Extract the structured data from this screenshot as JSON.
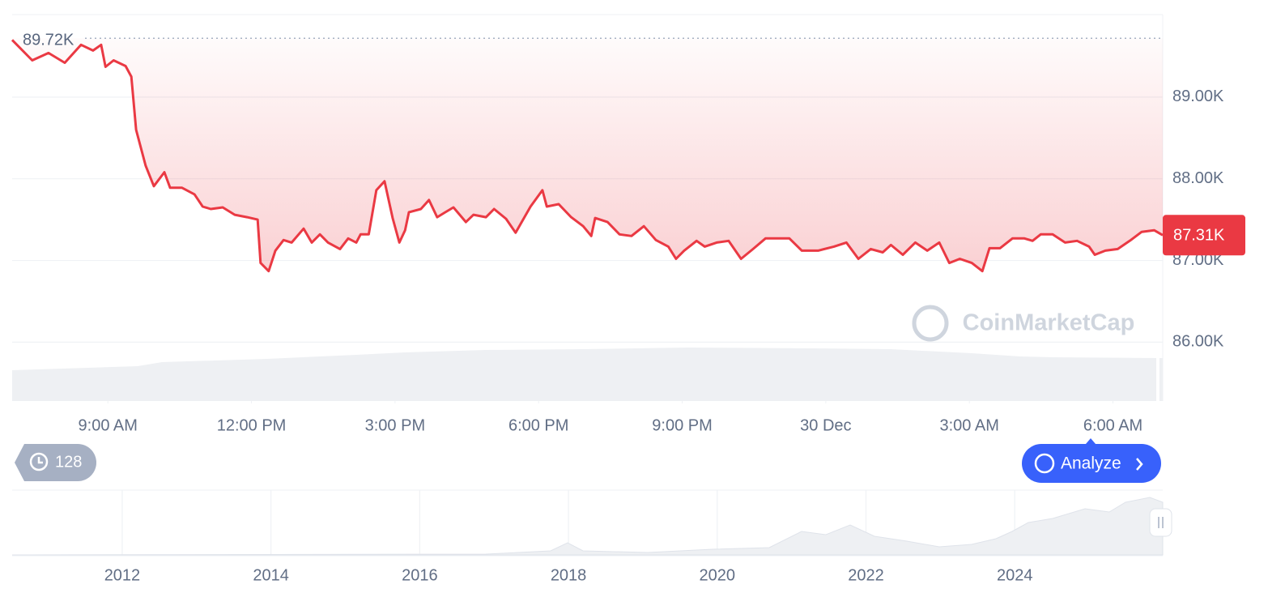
{
  "chart_data": {
    "type": "line",
    "color": "#ea3943",
    "x": [
      0,
      0.42,
      0.76,
      1.1,
      1.44,
      1.69,
      1.86,
      1.95,
      2.12,
      2.37,
      2.49,
      2.59,
      2.79,
      2.96,
      3.18,
      3.3,
      3.55,
      3.81,
      3.98,
      4.15,
      4.4,
      4.65,
      4.91,
      5.13,
      5.19,
      5.36,
      5.5,
      5.67,
      5.84,
      6.09,
      6.26,
      6.43,
      6.6,
      6.85,
      7.02,
      7.19,
      7.28,
      7.45,
      7.61,
      7.78,
      7.95,
      8.09,
      8.21,
      8.29,
      8.54,
      8.71,
      8.88,
      9.05,
      9.22,
      9.48,
      9.64,
      9.9,
      10.07,
      10.32,
      10.52,
      10.83,
      11.08,
      11.17,
      11.42,
      11.68,
      11.93,
      12.1,
      12.18,
      12.44,
      12.69,
      12.94,
      13.2,
      13.45,
      13.71,
      13.87,
      14.04,
      14.3,
      14.47,
      14.72,
      14.97,
      15.23,
      15.48,
      15.74,
      15.99,
      16.24,
      16.5,
      16.84,
      17.17,
      17.43,
      17.68,
      17.94,
      18.19,
      18.36,
      18.61,
      18.87,
      19.12,
      19.37,
      19.58,
      19.8,
      20.05,
      20.27,
      20.42,
      20.64,
      20.9,
      21.15,
      21.32,
      21.49,
      21.74,
      22.0,
      22.25,
      22.5,
      22.62,
      22.84,
      23.1,
      23.35,
      23.6,
      23.86,
      24.04
    ],
    "values": [
      89700,
      89450,
      89540,
      89420,
      89640,
      89570,
      89640,
      89370,
      89450,
      89380,
      89250,
      88600,
      88160,
      87910,
      88080,
      87890,
      87890,
      87810,
      87660,
      87630,
      87650,
      87560,
      87530,
      87500,
      86970,
      86870,
      87120,
      87250,
      87220,
      87390,
      87220,
      87320,
      87220,
      87140,
      87270,
      87220,
      87320,
      87320,
      87860,
      87970,
      87520,
      87220,
      87370,
      87590,
      87630,
      87740,
      87530,
      87590,
      87650,
      87470,
      87560,
      87530,
      87630,
      87510,
      87340,
      87660,
      87860,
      87660,
      87690,
      87530,
      87420,
      87300,
      87520,
      87470,
      87320,
      87300,
      87420,
      87250,
      87170,
      87020,
      87120,
      87240,
      87170,
      87220,
      87240,
      87020,
      87140,
      87270,
      87270,
      87270,
      87120,
      87120,
      87170,
      87220,
      87020,
      87140,
      87100,
      87190,
      87070,
      87220,
      87120,
      87220,
      86970,
      87020,
      86970,
      86870,
      87150,
      87150,
      87270,
      87270,
      87240,
      87320,
      87320,
      87220,
      87240,
      87170,
      87070,
      87120,
      87140,
      87240,
      87350,
      87370,
      87310
    ],
    "xlim": [
      0,
      24.04
    ],
    "xticks": [
      {
        "value": 2,
        "label": "9:00 AM"
      },
      {
        "value": 5,
        "label": "12:00 PM"
      },
      {
        "value": 8,
        "label": "3:00 PM"
      },
      {
        "value": 11,
        "label": "6:00 PM"
      },
      {
        "value": 14,
        "label": "9:00 PM"
      },
      {
        "value": 17,
        "label": "30 Dec"
      },
      {
        "value": 20,
        "label": "3:00 AM"
      },
      {
        "value": 23,
        "label": "6:00 AM"
      }
    ],
    "ylim": [
      85280,
      90010
    ],
    "yticks": [
      {
        "value": 86000,
        "label": "86.00K"
      },
      {
        "value": 87000,
        "label": "87.00K"
      },
      {
        "value": 88000,
        "label": "88.00K"
      },
      {
        "value": 89000,
        "label": "89.00K"
      }
    ],
    "grid": true,
    "high": {
      "value": 89720,
      "label": "89.72K"
    },
    "last_price": {
      "value": 87310,
      "label": "87.31K"
    }
  },
  "navigator": {
    "xlim": [
      2010.52,
      2025.99
    ],
    "xticks": [
      2012,
      2014,
      2016,
      2018,
      2020,
      2022,
      2024
    ]
  },
  "badges": {
    "history": 128,
    "analyze": "Analyze"
  },
  "watermark": "CoinMarketCap"
}
